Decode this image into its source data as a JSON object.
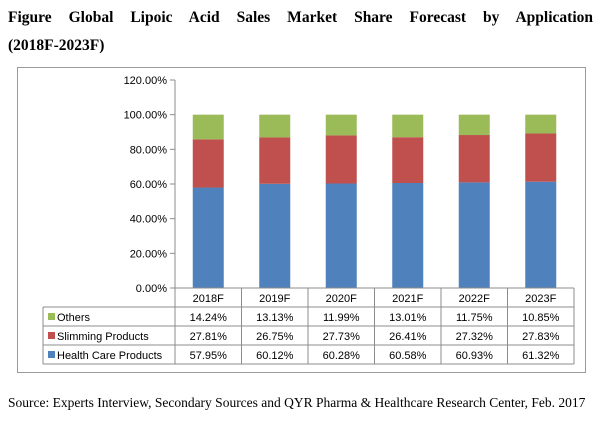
{
  "figure": {
    "title_line1": "Figure Global Lipoic Acid Sales Market Share Forecast by Application",
    "title_line2": "(2018F-2023F)",
    "source": "Source: Experts Interview, Secondary Sources and QYR Pharma & Healthcare Research Center, Feb. 2017"
  },
  "chart_data": {
    "type": "bar",
    "stacked": true,
    "title": "Global Lipoic Acid Sales Market Share Forecast by Application (2018F-2023F)",
    "categories": [
      "2018F",
      "2019F",
      "2020F",
      "2021F",
      "2022F",
      "2023F"
    ],
    "y_ticks": [
      "0.00%",
      "20.00%",
      "40.00%",
      "60.00%",
      "80.00%",
      "100.00%",
      "120.00%"
    ],
    "ylim": [
      0,
      120
    ],
    "series": [
      {
        "name": "Health Care Products",
        "color": "#4f81bd",
        "values": [
          57.95,
          60.12,
          60.28,
          60.58,
          60.93,
          61.32
        ],
        "labels": [
          "57.95%",
          "60.12%",
          "60.28%",
          "60.58%",
          "60.93%",
          "61.32%"
        ]
      },
      {
        "name": "Slimming Products",
        "color": "#c0504d",
        "values": [
          27.81,
          26.75,
          27.73,
          26.41,
          27.32,
          27.83
        ],
        "labels": [
          "27.81%",
          "26.75%",
          "27.73%",
          "26.41%",
          "27.32%",
          "27.83%"
        ]
      },
      {
        "name": "Others",
        "color": "#9bbb59",
        "values": [
          14.24,
          13.13,
          11.99,
          13.01,
          11.75,
          10.85
        ],
        "labels": [
          "14.24%",
          "13.13%",
          "11.99%",
          "13.01%",
          "11.75%",
          "10.85%"
        ]
      }
    ],
    "table_row_order": [
      "Others",
      "Slimming Products",
      "Health Care Products"
    ],
    "legend": "data-table"
  }
}
